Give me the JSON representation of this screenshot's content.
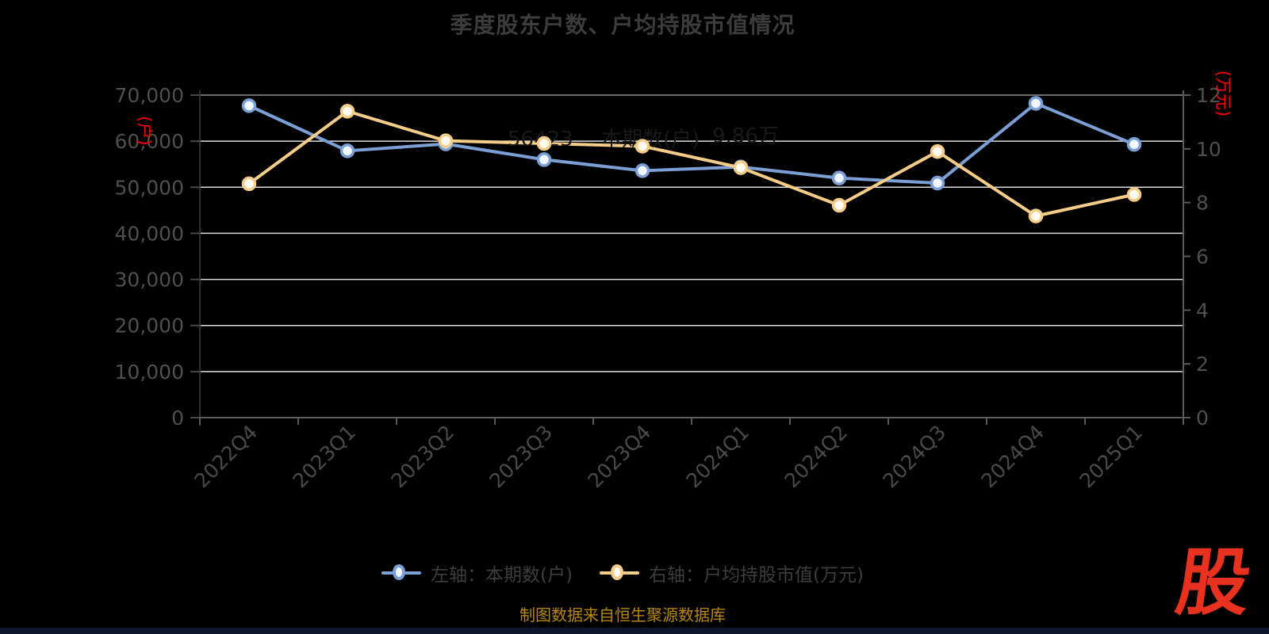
{
  "title": "季度股东户数、户均持股市值情况",
  "chart_data": {
    "type": "line",
    "title": "季度股东户数、户均持股市值情况",
    "categories": [
      "2022Q4",
      "2023Q1",
      "2023Q2",
      "2023Q3",
      "2023Q4",
      "2024Q1",
      "2024Q2",
      "2024Q3",
      "2024Q4",
      "2025Q1"
    ],
    "series": [
      {
        "name": "左轴：本期数(户)",
        "axis": "left",
        "color": "#7ca0d6",
        "marker_fill": "#f2f7ff",
        "values": [
          67700,
          57900,
          59400,
          56000,
          53600,
          54400,
          52000,
          50900,
          68200,
          59300
        ]
      },
      {
        "name": "右轴：户均持股市值(万元)",
        "axis": "right",
        "color": "#f5cd88",
        "marker_fill": "#fffbf2",
        "values": [
          8.7,
          11.4,
          10.3,
          10.2,
          10.1,
          9.3,
          7.9,
          9.9,
          7.5,
          8.3
        ]
      }
    ],
    "left_axis": {
      "unit": "(户)",
      "unit_color": "#ff0000",
      "min": 0,
      "max": 70000,
      "tick_labels": [
        "70,000",
        "60,000",
        "50,000",
        "40,000",
        "30,000",
        "20,000",
        "10,000",
        "0"
      ]
    },
    "right_axis": {
      "unit": "(万元)",
      "unit_color": "#ff0000",
      "min": 0,
      "max": 12,
      "tick_labels": [
        "12",
        "10",
        "8",
        "6",
        "4",
        "2",
        "0"
      ]
    },
    "grid": true,
    "legend_position": "bottom"
  },
  "watermark": {
    "fragments": [
      "56423",
      "本期数(户)",
      "9.86万"
    ]
  },
  "footer": {
    "source_note": "制图数据来自恒生聚源数据库"
  },
  "logo": {
    "text": "股"
  }
}
